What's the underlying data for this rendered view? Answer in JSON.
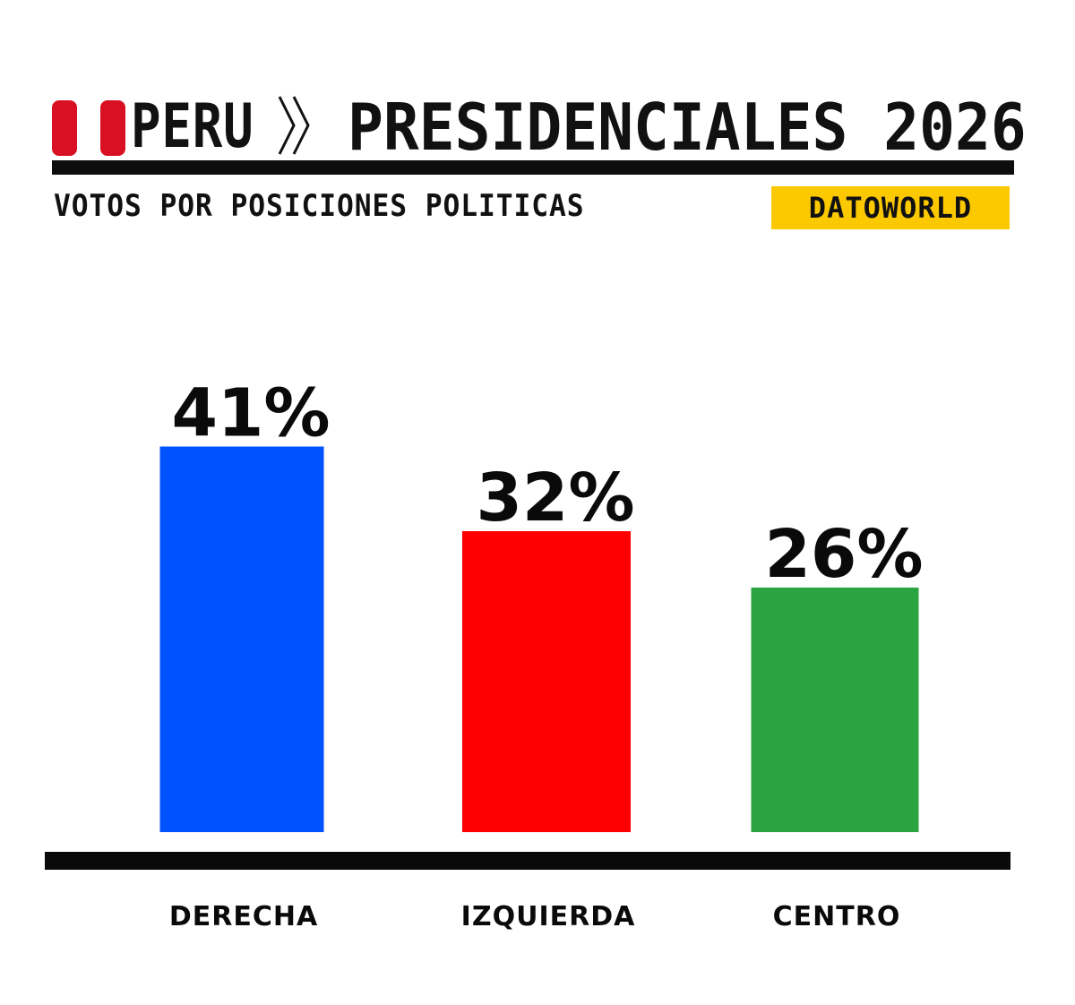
{
  "header": {
    "country": "PERU",
    "title": "PRESIDENCIALES 2026",
    "subtitle": "VOTOS POR POSICIONES POLITICAS",
    "brand": "DATOWORLD",
    "flag_color": "#d91023",
    "brand_color": "#fcc800"
  },
  "chart_data": {
    "type": "bar",
    "title": "PRESIDENCIALES 2026",
    "subtitle": "VOTOS POR POSICIONES POLITICAS",
    "categories": [
      "DERECHA",
      "IZQUIERDA",
      "CENTRO"
    ],
    "values": [
      41,
      32,
      26
    ],
    "value_labels": [
      "41%",
      "32%",
      "26%"
    ],
    "colors": [
      "#0052ff",
      "#ff0000",
      "#2aa340"
    ],
    "unit": "%",
    "ylim": [
      0,
      50
    ],
    "grid": false,
    "legend": "none"
  }
}
